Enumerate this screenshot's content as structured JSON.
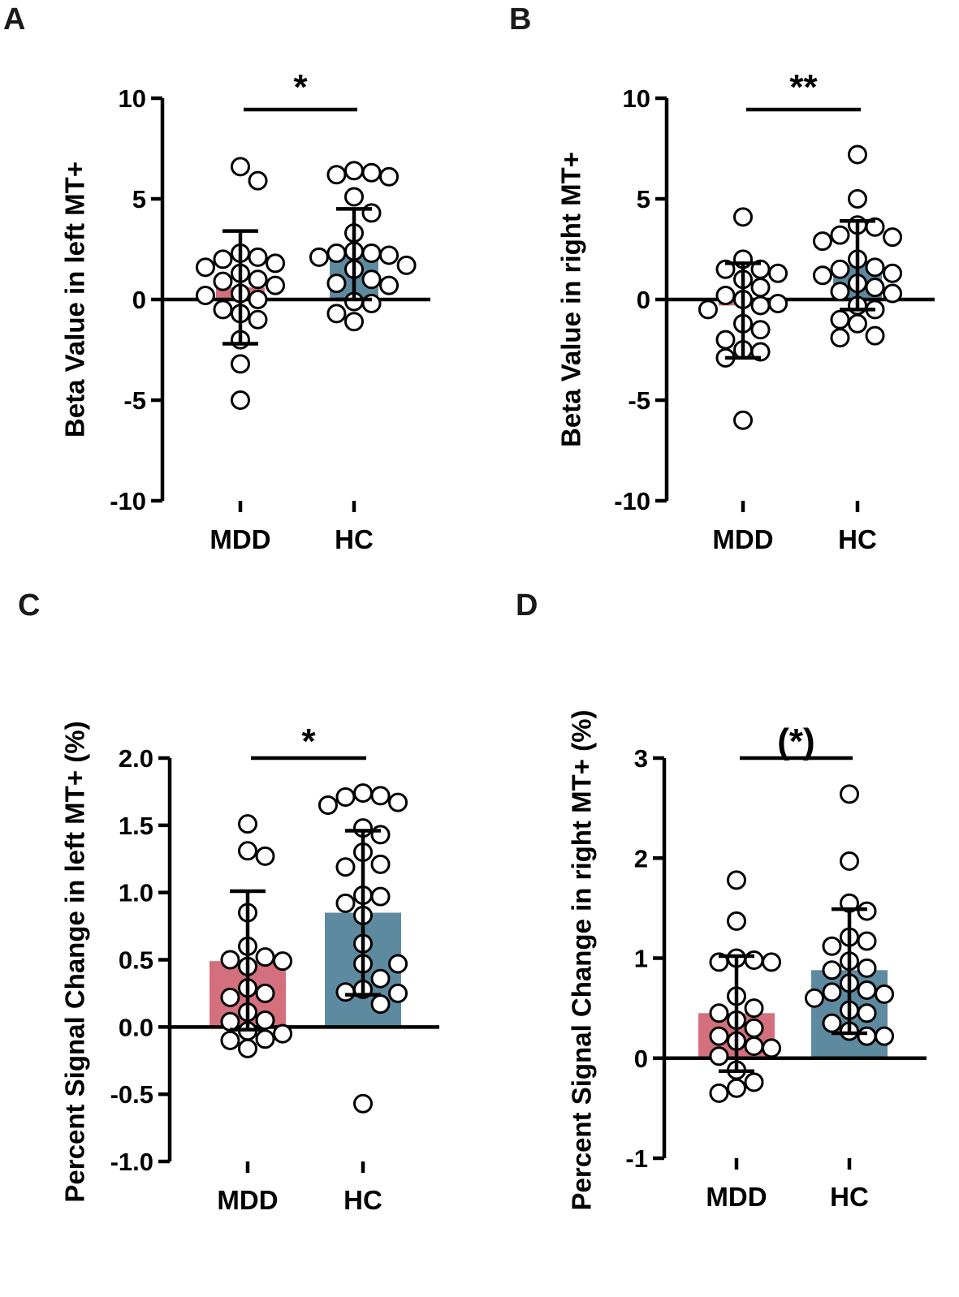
{
  "colors": {
    "mdd": "#d4707e",
    "hc": "#5e8aa0",
    "axis": "#000000",
    "point_fill": "#ffffff"
  },
  "chart_data": [
    {
      "panel": "A",
      "type": "bar",
      "ylabel": "Beta Value in left MT+",
      "categories": [
        "MDD",
        "HC"
      ],
      "ylim": [
        -10,
        10
      ],
      "yticks": [
        -10,
        -5,
        0,
        5,
        10
      ],
      "ytick_labels": [
        "-10",
        "-5",
        "0",
        "5",
        "10"
      ],
      "significance": "*",
      "series": [
        {
          "name": "MDD",
          "mean": 0.6,
          "sd_upper": 3.4,
          "sd_lower": -2.2,
          "points": [
            6.6,
            5.9,
            2.3,
            2.1,
            2.0,
            1.8,
            1.6,
            1.3,
            1.0,
            0.9,
            0.7,
            0.3,
            0.2,
            0.0,
            -0.5,
            -0.7,
            -1.0,
            -2.0,
            -3.2,
            -5.0
          ]
        },
        {
          "name": "HC",
          "mean": 2.3,
          "sd_upper": 4.5,
          "sd_lower": 0.0,
          "points": [
            6.4,
            6.3,
            6.2,
            6.1,
            5.1,
            4.3,
            3.3,
            2.4,
            2.3,
            2.3,
            2.2,
            2.1,
            1.7,
            1.5,
            1.0,
            0.8,
            0.7,
            -0.1,
            -0.2,
            -0.7,
            -1.1
          ]
        }
      ]
    },
    {
      "panel": "B",
      "type": "bar",
      "ylabel": "Beta Value in right MT+",
      "categories": [
        "MDD",
        "HC"
      ],
      "ylim": [
        -10,
        10
      ],
      "yticks": [
        -10,
        -5,
        0,
        5,
        10
      ],
      "ytick_labels": [
        "-10",
        "-5",
        "0",
        "5",
        "10"
      ],
      "significance": "**",
      "series": [
        {
          "name": "MDD",
          "mean": -0.3,
          "sd_upper": 1.8,
          "sd_lower": -2.9,
          "points": [
            4.1,
            2.0,
            1.5,
            1.5,
            1.3,
            1.0,
            0.6,
            0.2,
            0.0,
            -0.2,
            -0.3,
            -0.5,
            -1.2,
            -1.5,
            -2.0,
            -2.5,
            -2.6,
            -2.9,
            -6.0
          ]
        },
        {
          "name": "HC",
          "mean": 1.7,
          "sd_upper": 3.9,
          "sd_lower": -0.5,
          "points": [
            7.2,
            5.0,
            3.7,
            3.6,
            3.2,
            3.1,
            2.9,
            2.0,
            1.6,
            1.5,
            1.3,
            1.2,
            0.8,
            0.6,
            0.4,
            0.3,
            -0.3,
            -0.5,
            -1.0,
            -1.2,
            -1.8,
            -1.9
          ]
        }
      ]
    },
    {
      "panel": "C",
      "type": "bar",
      "ylabel": "Percent Signal Change in left MT+ (%)",
      "categories": [
        "MDD",
        "HC"
      ],
      "ylim": [
        -1.0,
        2.0
      ],
      "yticks": [
        -1.0,
        -0.5,
        0.0,
        0.5,
        1.0,
        1.5,
        2.0
      ],
      "ytick_labels": [
        "-1.0",
        "-0.5",
        "0.0",
        "0.5",
        "1.0",
        "1.5",
        "2.0"
      ],
      "significance": "*",
      "series": [
        {
          "name": "MDD",
          "mean": 0.49,
          "sd_upper": 1.01,
          "sd_lower": -0.02,
          "points": [
            1.51,
            1.31,
            1.27,
            0.85,
            0.6,
            0.52,
            0.5,
            0.49,
            0.45,
            0.29,
            0.25,
            0.22,
            0.11,
            0.05,
            0.04,
            -0.03,
            -0.05,
            -0.09,
            -0.1,
            -0.16
          ]
        },
        {
          "name": "HC",
          "mean": 0.85,
          "sd_upper": 1.46,
          "sd_lower": 0.24,
          "points": [
            1.74,
            1.72,
            1.71,
            1.67,
            1.65,
            1.48,
            1.43,
            1.3,
            1.21,
            1.19,
            0.98,
            0.97,
            0.92,
            0.83,
            0.62,
            0.47,
            0.47,
            0.36,
            0.28,
            0.26,
            0.25,
            0.17,
            -0.57
          ]
        }
      ]
    },
    {
      "panel": "D",
      "type": "bar",
      "ylabel": "Percent Signal Change in right MT+ (%)",
      "categories": [
        "MDD",
        "HC"
      ],
      "ylim": [
        -1,
        3
      ],
      "yticks": [
        -1,
        0,
        1,
        2,
        3
      ],
      "ytick_labels": [
        "-1",
        "0",
        "1",
        "2",
        "3"
      ],
      "significance": "(*)",
      "series": [
        {
          "name": "MDD",
          "mean": 0.45,
          "sd_upper": 1.02,
          "sd_lower": -0.13,
          "points": [
            1.78,
            1.37,
            1.0,
            0.98,
            0.96,
            0.96,
            0.62,
            0.5,
            0.45,
            0.38,
            0.3,
            0.22,
            0.17,
            0.12,
            0.1,
            0.02,
            -0.12,
            -0.24,
            -0.3,
            -0.35
          ]
        },
        {
          "name": "HC",
          "mean": 0.88,
          "sd_upper": 1.49,
          "sd_lower": 0.25,
          "points": [
            2.64,
            1.97,
            1.55,
            1.47,
            1.21,
            1.17,
            1.12,
            0.97,
            0.9,
            0.88,
            0.75,
            0.68,
            0.66,
            0.64,
            0.6,
            0.48,
            0.45,
            0.35,
            0.27,
            0.22,
            0.22
          ]
        }
      ]
    }
  ]
}
